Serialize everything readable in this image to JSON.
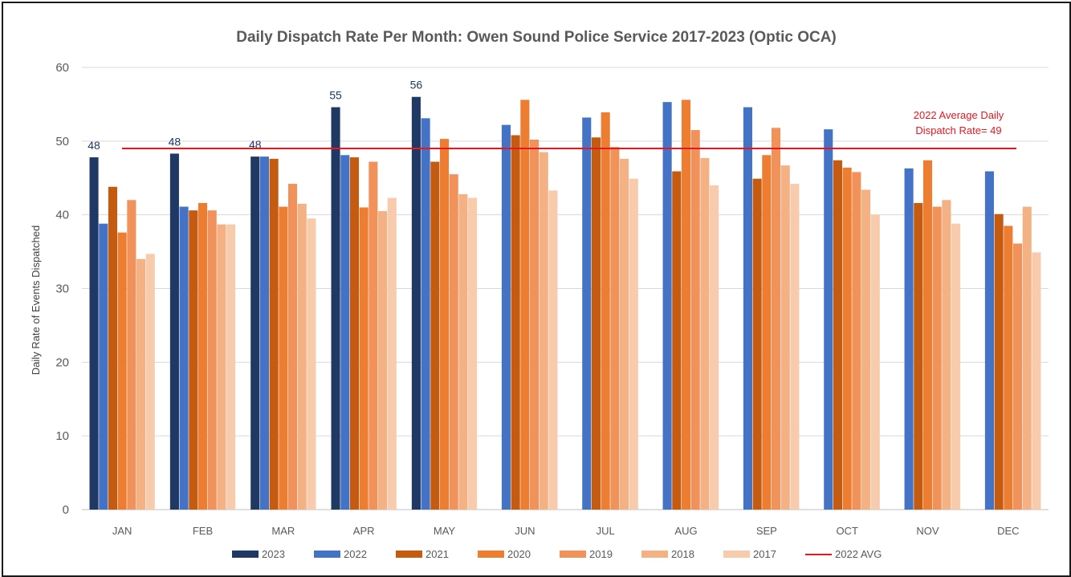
{
  "chart_data": {
    "type": "bar",
    "title": "Daily Dispatch Rate Per Month: Owen Sound Police Service 2017-2023 (Optic OCA)",
    "ylabel": "Daily Rate of Events Dispatched",
    "xlabel": "",
    "ylim": [
      0,
      60
    ],
    "yticks": [
      0,
      10,
      20,
      30,
      40,
      50,
      60
    ],
    "grid": true,
    "legend_position": "bottom",
    "categories": [
      "JAN",
      "FEB",
      "MAR",
      "APR",
      "MAY",
      "JUN",
      "JUL",
      "AUG",
      "SEP",
      "OCT",
      "NOV",
      "DEC"
    ],
    "series": [
      {
        "name": "2023",
        "color": "#203864",
        "values": [
          47.8,
          48.3,
          47.9,
          54.6,
          56.0,
          null,
          null,
          null,
          null,
          null,
          null,
          null
        ]
      },
      {
        "name": "2022",
        "color": "#4472c4",
        "values": [
          38.8,
          41.1,
          47.9,
          48.1,
          53.1,
          52.2,
          53.2,
          55.3,
          54.6,
          51.6,
          46.3,
          45.9
        ]
      },
      {
        "name": "2021",
        "color": "#c55a11",
        "values": [
          43.8,
          40.6,
          47.6,
          47.8,
          47.2,
          50.8,
          50.5,
          45.9,
          44.9,
          47.4,
          41.6,
          40.1
        ]
      },
      {
        "name": "2020",
        "color": "#ed7d31",
        "values": [
          37.6,
          41.6,
          41.1,
          41.0,
          50.3,
          55.6,
          53.9,
          55.6,
          48.1,
          46.4,
          47.4,
          38.5
        ]
      },
      {
        "name": "2019",
        "color": "#f0925a",
        "values": [
          42.0,
          40.6,
          44.2,
          47.2,
          45.5,
          50.2,
          49.2,
          51.5,
          51.8,
          45.8,
          41.1,
          36.1
        ]
      },
      {
        "name": "2018",
        "color": "#f4b183",
        "values": [
          34.0,
          38.7,
          41.5,
          40.5,
          42.8,
          48.5,
          47.6,
          47.7,
          46.7,
          43.4,
          42.0,
          41.1
        ]
      },
      {
        "name": "2017",
        "color": "#f8cbad",
        "values": [
          34.7,
          38.7,
          39.5,
          42.3,
          42.3,
          43.3,
          44.9,
          44.0,
          44.2,
          40.0,
          38.8,
          34.9
        ]
      }
    ],
    "data_labels": [
      {
        "series": "2023",
        "category": "JAN",
        "text": "48"
      },
      {
        "series": "2023",
        "category": "FEB",
        "text": "48"
      },
      {
        "series": "2023",
        "category": "MAR",
        "text": "48"
      },
      {
        "series": "2023",
        "category": "APR",
        "text": "55"
      },
      {
        "series": "2023",
        "category": "MAY",
        "text": "56"
      }
    ],
    "reference_line": {
      "name": "2022 AVG",
      "value": 49,
      "color": "#e8171f",
      "annotation": [
        "2022 Average Daily",
        "Dispatch Rate= 49"
      ]
    }
  }
}
